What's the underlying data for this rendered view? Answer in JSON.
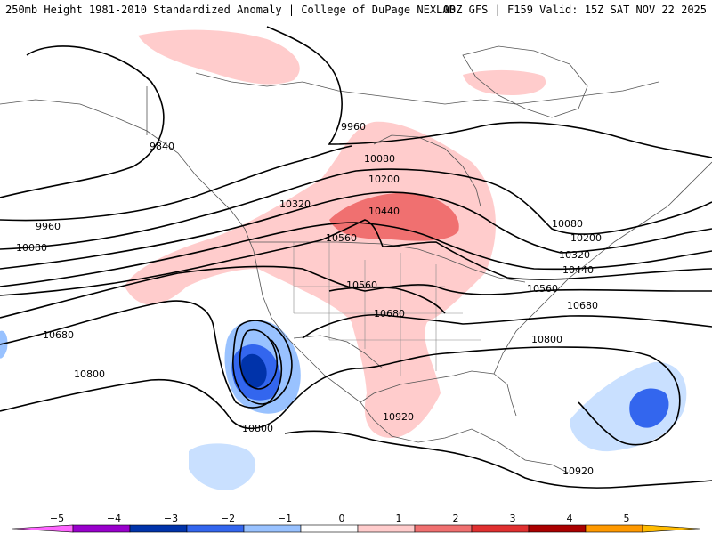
{
  "header": {
    "title": "250mb Height 1981-2010 Standardized Anomaly | College of DuPage NEXLAB",
    "run_info": "00Z GFS | F159 Valid: 15Z SAT NOV 22 2025"
  },
  "colorbar": {
    "ticks": [
      "-5",
      "-4",
      "-3",
      "-2",
      "-1",
      "0",
      "1",
      "2",
      "3",
      "4",
      "5"
    ],
    "colors": [
      "#ff66ff",
      "#9900cc",
      "#0033aa",
      "#3366ee",
      "#99c2ff",
      "#ffffff",
      "#ffcccc",
      "#f07070",
      "#e03030",
      "#aa0000",
      "#ff9900",
      "#ffbb00"
    ]
  },
  "contour_labels": [
    {
      "text": "9960",
      "position": "north-central"
    },
    {
      "text": "9840",
      "position": "alaska"
    },
    {
      "text": "10080",
      "position": "canada-central"
    },
    {
      "text": "10200",
      "position": "canada-central"
    },
    {
      "text": "10320",
      "position": "pacific-northwest"
    },
    {
      "text": "10440",
      "position": "great-lakes-ridge"
    },
    {
      "text": "10560",
      "position": "northern-plains"
    },
    {
      "text": "9960",
      "position": "west-pacific"
    },
    {
      "text": "10080",
      "position": "west-pacific"
    },
    {
      "text": "10560",
      "position": "central-plains"
    },
    {
      "text": "10680",
      "position": "southern-plains"
    },
    {
      "text": "10680",
      "position": "east-pacific"
    },
    {
      "text": "10800",
      "position": "east-pacific"
    },
    {
      "text": "10800",
      "position": "baja"
    },
    {
      "text": "10920",
      "position": "gulf"
    },
    {
      "text": "10080",
      "position": "new-england"
    },
    {
      "text": "10200",
      "position": "new-england"
    },
    {
      "text": "10320",
      "position": "new-england"
    },
    {
      "text": "10440",
      "position": "new-england"
    },
    {
      "text": "10560",
      "position": "mid-atlantic"
    },
    {
      "text": "10680",
      "position": "atlantic"
    },
    {
      "text": "10800",
      "position": "southeast"
    },
    {
      "text": "10920",
      "position": "caribbean"
    }
  ]
}
